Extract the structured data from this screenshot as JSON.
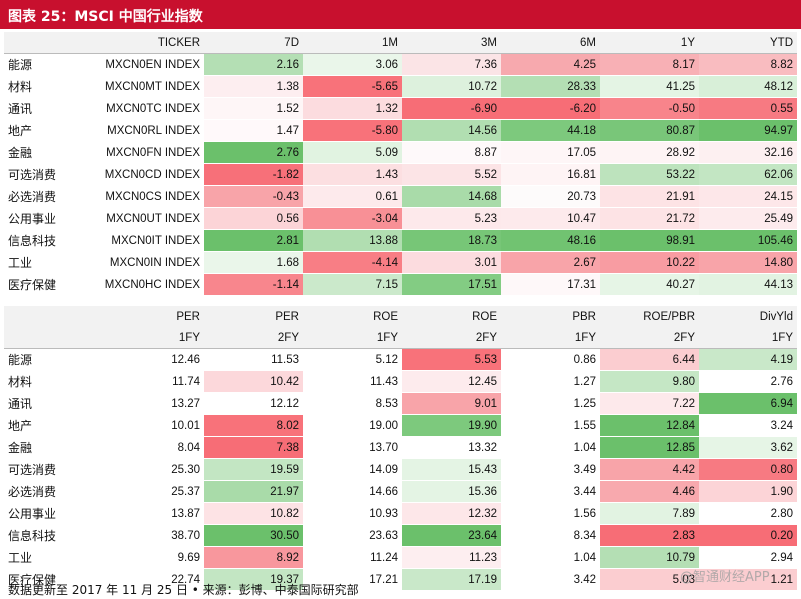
{
  "title": "图表 25：MSCI 中国行业指数",
  "table1": {
    "headers": [
      "",
      "TICKER",
      "7D",
      "1M",
      "3M",
      "6M",
      "1Y",
      "YTD"
    ],
    "rows": [
      {
        "name": "能源",
        "ticker": "MXCN0EN INDEX",
        "vals": [
          "2.16",
          "3.06",
          "7.36",
          "4.25",
          "8.17",
          "8.82"
        ],
        "colors": [
          "#b4dfb4",
          "#eaf6ea",
          "#fbe4e6",
          "#f7a9ae",
          "#f8b0b5",
          "#f9bcc0"
        ]
      },
      {
        "name": "材料",
        "ticker": "MXCN0MT INDEX",
        "vals": [
          "1.38",
          "-5.65",
          "10.72",
          "28.33",
          "41.25",
          "48.12"
        ],
        "colors": [
          "#fdeef0",
          "#f8727a",
          "#ddf1dd",
          "#b4dfb4",
          "#e4f4e4",
          "#d8efd8"
        ]
      },
      {
        "name": "通讯",
        "ticker": "MXCN0TC INDEX",
        "vals": [
          "1.52",
          "1.32",
          "-6.90",
          "-6.20",
          "-0.50",
          "0.55"
        ],
        "colors": [
          "#fef6f7",
          "#fcdcdf",
          "#f76d76",
          "#f76d76",
          "#f8848b",
          "#f77a82"
        ]
      },
      {
        "name": "地产",
        "ticker": "MXCN0RL INDEX",
        "vals": [
          "1.47",
          "-5.80",
          "14.56",
          "44.18",
          "80.87",
          "94.97"
        ],
        "colors": [
          "#fff9fa",
          "#f8727a",
          "#b1deb1",
          "#7dc97d",
          "#79c679",
          "#6bc06b"
        ]
      },
      {
        "name": "金融",
        "ticker": "MXCN0FN INDEX",
        "vals": [
          "2.76",
          "5.09",
          "8.87",
          "17.05",
          "28.92",
          "32.16"
        ],
        "colors": [
          "#6bc06b",
          "#e1f3e1",
          "#fef9fa",
          "#fef6f7",
          "#fef4f5",
          "#fdf0f1"
        ]
      },
      {
        "name": "可选消费",
        "ticker": "MXCN0CD INDEX",
        "vals": [
          "-1.82",
          "1.43",
          "5.52",
          "16.81",
          "53.22",
          "62.06"
        ],
        "colors": [
          "#f77079",
          "#fcdfe1",
          "#fce4e6",
          "#fef4f5",
          "#bde3bd",
          "#c3e6c3"
        ]
      },
      {
        "name": "必选消费",
        "ticker": "MXCN0CS INDEX",
        "vals": [
          "-0.43",
          "0.61",
          "14.68",
          "20.73",
          "21.91",
          "24.15"
        ],
        "colors": [
          "#f8a4a9",
          "#fdeaec",
          "#a9dba9",
          "#fdfbfb",
          "#fde3e5",
          "#fde7e9"
        ]
      },
      {
        "name": "公用事业",
        "ticker": "MXCN0UT INDEX",
        "vals": [
          "0.56",
          "-3.04",
          "5.23",
          "10.47",
          "21.72",
          "25.49"
        ],
        "colors": [
          "#fcd4d7",
          "#f89096",
          "#fde9eb",
          "#fdeaec",
          "#fde3e5",
          "#fdebed"
        ]
      },
      {
        "name": "信息科技",
        "ticker": "MXCN0IT INDEX",
        "vals": [
          "2.81",
          "13.88",
          "18.73",
          "48.16",
          "98.91",
          "105.46"
        ],
        "colors": [
          "#6bc06b",
          "#b1deb1",
          "#77c677",
          "#71c371",
          "#6bc06b",
          "#6bc06b"
        ]
      },
      {
        "name": "工业",
        "ticker": "MXCN0IN INDEX",
        "vals": [
          "1.68",
          "-4.14",
          "3.01",
          "2.67",
          "10.22",
          "14.80"
        ],
        "colors": [
          "#eaf6ea",
          "#f87e85",
          "#fcdcdf",
          "#f8a4a9",
          "#f89ca2",
          "#f8a4a9"
        ]
      },
      {
        "name": "医疗保健",
        "ticker": "MXCN0HC INDEX",
        "vals": [
          "-1.14",
          "7.15",
          "17.51",
          "17.31",
          "40.27",
          "44.13"
        ],
        "colors": [
          "#f8868d",
          "#cbe9cb",
          "#83cc83",
          "#fef8f9",
          "#e6f5e6",
          "#e2f3e2"
        ]
      }
    ]
  },
  "table2": {
    "headers_top": [
      "",
      "PER",
      "PER",
      "ROE",
      "ROE",
      "PBR",
      "ROE/PBR",
      "DivYld"
    ],
    "headers_sub": [
      "",
      "1FY",
      "2FY",
      "1FY",
      "2FY",
      "1FY",
      "2FY",
      "1FY"
    ],
    "rows": [
      {
        "name": "能源",
        "vals": [
          "12.46",
          "11.53",
          "5.12",
          "5.53",
          "0.86",
          "6.44",
          "4.19"
        ],
        "colors": [
          "#ffffff",
          "#ffffff",
          "#ffffff",
          "#f8727a",
          "#ffffff",
          "#fbcdd0",
          "#c9e8c9"
        ]
      },
      {
        "name": "材料",
        "vals": [
          "11.74",
          "10.42",
          "11.43",
          "12.45",
          "1.27",
          "9.80",
          "2.76"
        ],
        "colors": [
          "#ffffff",
          "#fcd8db",
          "#ffffff",
          "#fdebed",
          "#ffffff",
          "#c5e7c5",
          "#ffffff"
        ]
      },
      {
        "name": "通讯",
        "vals": [
          "13.27",
          "12.12",
          "8.53",
          "9.01",
          "1.25",
          "7.22",
          "6.94"
        ],
        "colors": [
          "#ffffff",
          "#ffffff",
          "#ffffff",
          "#f8a4a9",
          "#ffffff",
          "#fde9eb",
          "#6bc06b"
        ]
      },
      {
        "name": "地产",
        "vals": [
          "10.01",
          "8.02",
          "19.00",
          "19.90",
          "1.55",
          "12.84",
          "3.24"
        ],
        "colors": [
          "#ffffff",
          "#f8727a",
          "#ffffff",
          "#7dc97d",
          "#ffffff",
          "#6bc06b",
          "#ffffff"
        ]
      },
      {
        "name": "金融",
        "vals": [
          "8.04",
          "7.38",
          "13.70",
          "13.32",
          "1.04",
          "12.85",
          "3.62"
        ],
        "colors": [
          "#ffffff",
          "#f76d76",
          "#ffffff",
          "#ffffff",
          "#ffffff",
          "#6bc06b",
          "#e6f5e6"
        ]
      },
      {
        "name": "可选消费",
        "vals": [
          "25.30",
          "19.59",
          "14.09",
          "15.43",
          "3.49",
          "4.42",
          "0.80"
        ],
        "colors": [
          "#ffffff",
          "#c3e6c3",
          "#ffffff",
          "#e4f4e4",
          "#ffffff",
          "#f8a4a9",
          "#f77a82"
        ]
      },
      {
        "name": "必选消费",
        "vals": [
          "25.37",
          "21.97",
          "14.66",
          "15.36",
          "3.44",
          "4.46",
          "1.90"
        ],
        "colors": [
          "#ffffff",
          "#a9dba9",
          "#ffffff",
          "#e4f4e4",
          "#ffffff",
          "#f8a9ae",
          "#fcd4d7"
        ]
      },
      {
        "name": "公用事业",
        "vals": [
          "13.87",
          "10.82",
          "10.93",
          "12.32",
          "1.56",
          "7.89",
          "2.80"
        ],
        "colors": [
          "#ffffff",
          "#fde3e5",
          "#ffffff",
          "#fde7e9",
          "#ffffff",
          "#e2f3e2",
          "#ffffff"
        ]
      },
      {
        "name": "信息科技",
        "vals": [
          "38.70",
          "30.50",
          "23.63",
          "23.64",
          "8.34",
          "2.83",
          "0.20"
        ],
        "colors": [
          "#ffffff",
          "#6bc06b",
          "#ffffff",
          "#6bc06b",
          "#ffffff",
          "#f76d76",
          "#f76d76"
        ]
      },
      {
        "name": "工业",
        "vals": [
          "9.69",
          "8.92",
          "11.24",
          "11.23",
          "1.04",
          "10.79",
          "2.94"
        ],
        "colors": [
          "#ffffff",
          "#f8979d",
          "#ffffff",
          "#fdeef0",
          "#ffffff",
          "#b4dfb4",
          "#ffffff"
        ]
      },
      {
        "name": "医疗保健",
        "vals": [
          "22.74",
          "19.37",
          "17.21",
          "17.19",
          "3.42",
          "5.03",
          "1.21"
        ],
        "colors": [
          "#ffffff",
          "#c3e6c3",
          "#ffffff",
          "#c9e8c9",
          "#ffffff",
          "#fbcdd0",
          "#fbcdd0"
        ]
      }
    ]
  },
  "source": "数据更新至 2017 年 11 月 25 日 • 来源：彭博、中泰国际研究部",
  "watermark": "@智通财经APP"
}
